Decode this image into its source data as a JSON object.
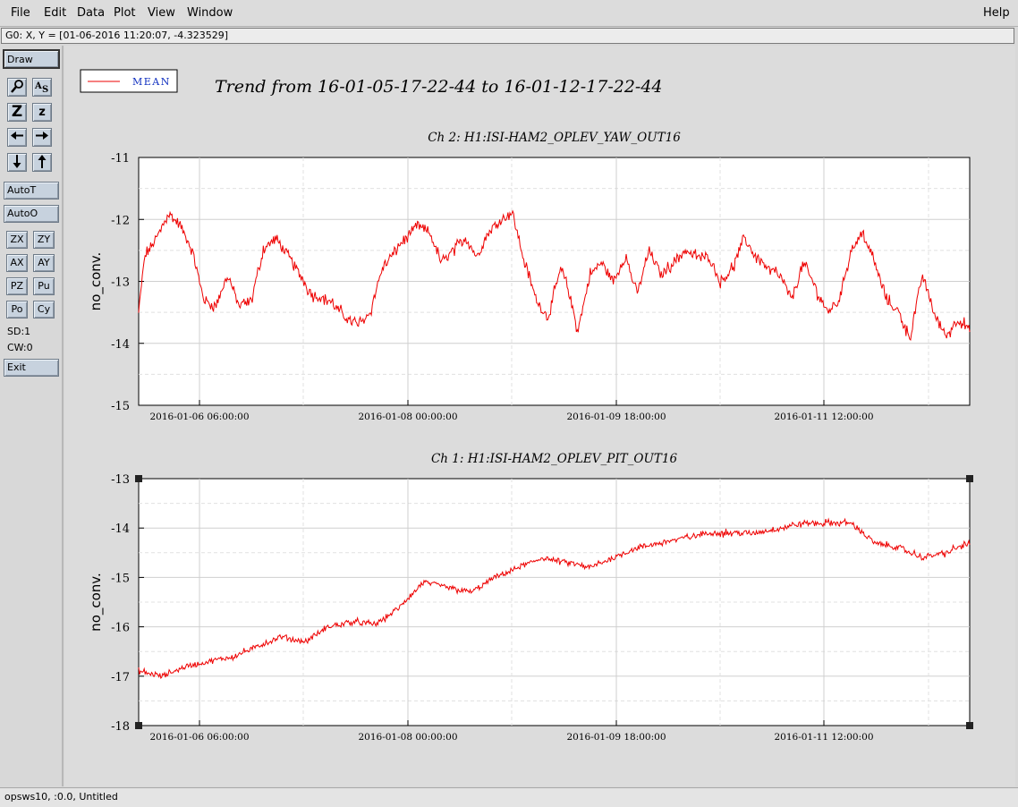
{
  "menu": {
    "file": "File",
    "edit": "Edit",
    "data": "Data",
    "plot": "Plot",
    "view": "View",
    "window": "Window",
    "help": "Help"
  },
  "status": "G0: X, Y = [01-06-2016 11:20:07, -4.323529]",
  "toolbar": {
    "draw": "Draw",
    "zoom_big": "Z",
    "zoom_small": "z",
    "auto_t": "AutoT",
    "auto_o": "AutoO",
    "zx": "ZX",
    "zy": "ZY",
    "ax": "AX",
    "ay": "AY",
    "pz": "PZ",
    "pu": "Pu",
    "po": "Po",
    "cy": "Cy",
    "sd": "SD:1",
    "cw": "CW:0",
    "exit": "Exit"
  },
  "legend": {
    "label": "MEAN",
    "color": "#ee0000"
  },
  "page_title": "Trend from 16-01-05-17-22-44 to 16-01-12-17-22-44",
  "bottom_status": "opsws10, :0.0, Untitled",
  "chart_data": [
    {
      "type": "line",
      "title": "Ch 2: H1:ISI-HAM2_OPLEV_YAW_OUT16",
      "ylabel": "no_conv.",
      "xlabel": "",
      "ylim": [
        -15,
        -11
      ],
      "y_ticks": [
        -11,
        -12,
        -13,
        -14,
        -15
      ],
      "x_tick_labels": [
        "2016-01-06 06:00:00",
        "2016-01-08 00:00:00",
        "2016-01-09 18:00:00",
        "2016-01-11 12:00:00"
      ],
      "grid": true,
      "series": [
        {
          "name": "MEAN",
          "color": "#ee0000",
          "x_days_since_start": [
            0,
            0.05,
            0.15,
            0.25,
            0.35,
            0.45,
            0.55,
            0.65,
            0.75,
            0.85,
            0.95,
            1.05,
            1.15,
            1.3,
            1.45,
            1.6,
            1.75,
            1.85,
            1.95,
            2.05,
            2.2,
            2.35,
            2.45,
            2.55,
            2.65,
            2.75,
            2.85,
            2.95,
            3.05,
            3.15,
            3.25,
            3.35,
            3.45,
            3.55,
            3.6,
            3.7,
            3.8,
            3.9,
            4.0,
            4.1,
            4.2,
            4.3,
            4.4,
            4.5,
            4.6,
            4.7,
            4.8,
            4.9,
            5.0,
            5.1,
            5.2,
            5.3,
            5.4,
            5.5,
            5.6,
            5.7,
            5.8,
            5.9,
            6.0,
            6.1,
            6.2,
            6.3,
            6.4,
            6.5,
            6.6,
            6.7,
            6.8,
            6.9,
            7.0
          ],
          "values": [
            -13.5,
            -12.6,
            -12.3,
            -11.9,
            -12.1,
            -12.5,
            -13.3,
            -13.4,
            -12.9,
            -13.4,
            -13.3,
            -12.5,
            -12.3,
            -12.7,
            -13.2,
            -13.3,
            -13.6,
            -13.7,
            -13.5,
            -12.8,
            -12.4,
            -12.1,
            -12.2,
            -12.7,
            -12.5,
            -12.3,
            -12.6,
            -12.2,
            -12.0,
            -11.9,
            -12.7,
            -13.3,
            -13.6,
            -12.8,
            -13.0,
            -13.8,
            -12.9,
            -12.7,
            -13.0,
            -12.6,
            -13.2,
            -12.5,
            -12.9,
            -12.7,
            -12.5,
            -12.6,
            -12.6,
            -13.0,
            -12.8,
            -12.3,
            -12.6,
            -12.8,
            -12.9,
            -13.3,
            -12.7,
            -13.1,
            -13.5,
            -13.3,
            -12.5,
            -12.2,
            -12.7,
            -13.3,
            -13.5,
            -13.9,
            -12.9,
            -13.5,
            -13.9,
            -13.6,
            -13.8
          ]
        }
      ]
    },
    {
      "type": "line",
      "title": "Ch 1: H1:ISI-HAM2_OPLEV_PIT_OUT16",
      "ylabel": "no_conv.",
      "xlabel": "",
      "ylim": [
        -18,
        -13
      ],
      "y_ticks": [
        -13,
        -14,
        -15,
        -16,
        -17,
        -18
      ],
      "x_tick_labels": [
        "2016-01-06 06:00:00",
        "2016-01-08 00:00:00",
        "2016-01-09 18:00:00",
        "2016-01-11 12:00:00"
      ],
      "grid": true,
      "series": [
        {
          "name": "MEAN",
          "color": "#ee0000",
          "x_days_since_start": [
            0,
            0.2,
            0.4,
            0.6,
            0.8,
            1.0,
            1.2,
            1.4,
            1.6,
            1.8,
            2.0,
            2.2,
            2.4,
            2.6,
            2.8,
            3.0,
            3.2,
            3.4,
            3.6,
            3.8,
            4.0,
            4.2,
            4.4,
            4.6,
            4.8,
            5.0,
            5.2,
            5.4,
            5.6,
            5.8,
            6.0,
            6.2,
            6.4,
            6.6,
            6.8,
            7.0
          ],
          "values": [
            -16.9,
            -17.0,
            -16.8,
            -16.7,
            -16.6,
            -16.4,
            -16.2,
            -16.3,
            -16.0,
            -15.9,
            -15.95,
            -15.6,
            -15.1,
            -15.2,
            -15.3,
            -15.0,
            -14.8,
            -14.6,
            -14.7,
            -14.8,
            -14.6,
            -14.4,
            -14.3,
            -14.2,
            -14.1,
            -14.1,
            -14.1,
            -14.0,
            -13.9,
            -13.9,
            -13.9,
            -14.3,
            -14.4,
            -14.6,
            -14.5,
            -14.3
          ]
        }
      ]
    }
  ]
}
